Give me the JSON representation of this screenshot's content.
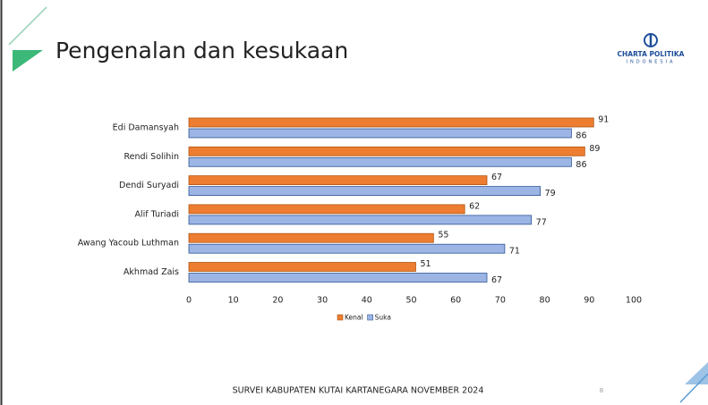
{
  "chart_data": {
    "type": "bar",
    "orientation": "horizontal",
    "title": "Pengenalan dan kesukaan",
    "categories": [
      "Edi Damansyah",
      "Rendi Solihin",
      "Dendi Suryadi",
      "Alif Turiadi",
      "Awang Yacoub Luthman",
      "Akhmad Zais"
    ],
    "series": [
      {
        "name": "Kenal",
        "color": "#ed7d31",
        "values": [
          91,
          89,
          67,
          62,
          55,
          51
        ]
      },
      {
        "name": "Suka",
        "color": "#9db5e4",
        "values": [
          86,
          86,
          79,
          77,
          71,
          67
        ]
      }
    ],
    "xlim": [
      0,
      100
    ],
    "xticks": [
      0,
      10,
      20,
      30,
      40,
      50,
      60,
      70,
      80,
      90,
      100
    ],
    "grid": false,
    "legend": "bottom"
  },
  "logo": {
    "name": "CHARTA POLITIKA",
    "sub": "INDONESIA"
  },
  "footer": "SURVEI KABUPATEN KUTAI KARTANEGARA NOVEMBER 2024",
  "page_number": "8"
}
